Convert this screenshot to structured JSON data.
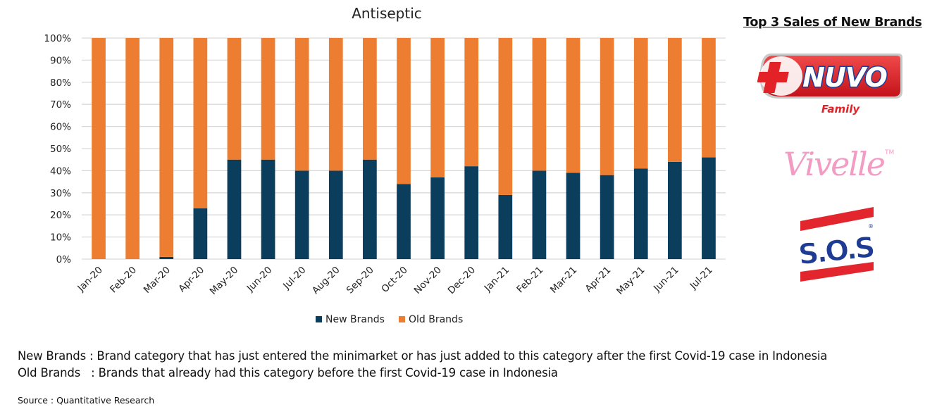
{
  "chart_data": {
    "type": "bar",
    "stacked": true,
    "percent_stacked": true,
    "title": "Antiseptic",
    "xlabel": "",
    "ylabel": "",
    "ylim": [
      0,
      100
    ],
    "yticks": [
      "0%",
      "10%",
      "20%",
      "30%",
      "40%",
      "50%",
      "60%",
      "70%",
      "80%",
      "90%",
      "100%"
    ],
    "grid": true,
    "legend_position": "bottom",
    "categories": [
      "Jan-20",
      "Feb-20",
      "Mar-20",
      "Apr-20",
      "May-20",
      "Jun-20",
      "Jul-20",
      "Aug-20",
      "Sep-20",
      "Oct-20",
      "Nov-20",
      "Dec-20",
      "Jan-21",
      "Feb-21",
      "Mar-21",
      "Apr-21",
      "May-21",
      "Jun-21",
      "Jul-21"
    ],
    "series": [
      {
        "name": "New Brands",
        "color": "#0b3d5c",
        "values": [
          0,
          0,
          1,
          23,
          45,
          45,
          40,
          40,
          45,
          34,
          37,
          42,
          29,
          40,
          39,
          38,
          41,
          44,
          46
        ]
      },
      {
        "name": "Old Brands",
        "color": "#ed7d31",
        "values": [
          100,
          100,
          99,
          77,
          55,
          55,
          60,
          60,
          55,
          66,
          63,
          58,
          71,
          60,
          61,
          62,
          59,
          56,
          54
        ]
      }
    ]
  },
  "notes": [
    {
      "term": "New Brands ",
      "definition": ": Brand category that has just entered the minimarket or has just added to this category after the first Covid-19 case in Indonesia"
    },
    {
      "term": "Old Brands   ",
      "definition": ": Brands that already had this category before the first Covid-19 case in Indonesia"
    }
  ],
  "source": "Source : Quantitative Research",
  "sidebar": {
    "title": "Top 3 Sales of New Brands",
    "brands": [
      {
        "name": "NUVO",
        "subtitle": "Family"
      },
      {
        "name": "Vivelle",
        "mark": "TM"
      },
      {
        "name": "S.O.S",
        "mark": "®"
      }
    ]
  }
}
